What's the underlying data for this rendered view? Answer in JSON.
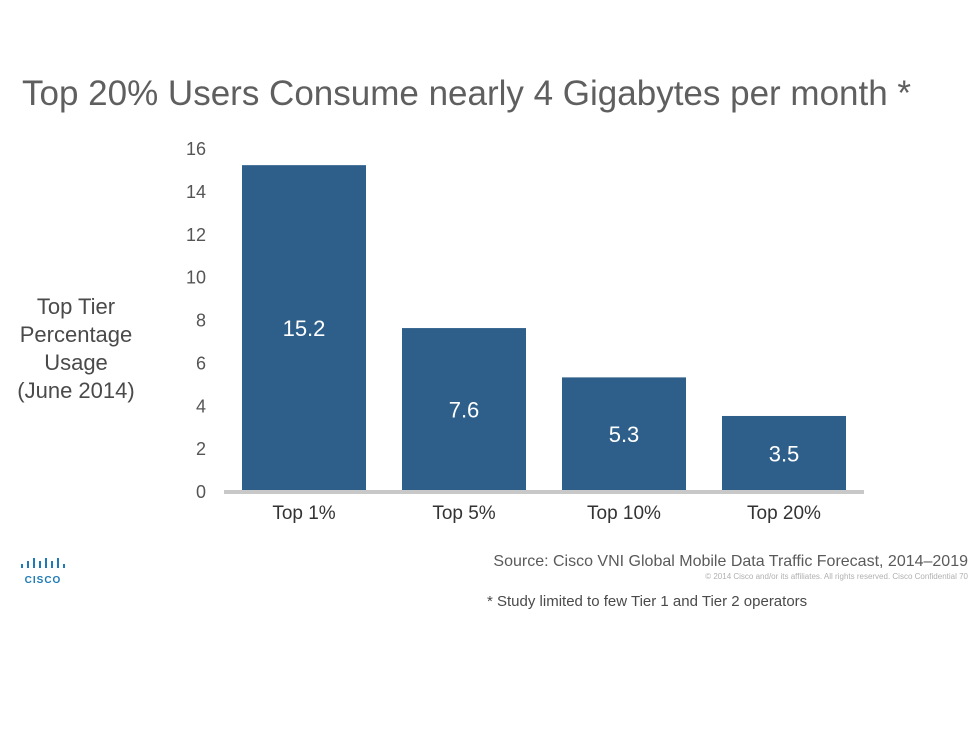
{
  "title": "Top 20% Users Consume nearly 4 Gigabytes per month *",
  "chart_data": {
    "type": "bar",
    "title": "Top 20% Users Consume nearly 4 Gigabytes per month *",
    "ylabel_lines": [
      "Top Tier",
      "Percentage",
      "Usage",
      "(June 2014)"
    ],
    "xlabel": "",
    "categories": [
      "Top 1%",
      "Top 5%",
      "Top 10%",
      "Top 20%"
    ],
    "values": [
      15.2,
      7.6,
      5.3,
      3.5
    ],
    "data_labels": [
      "15.2",
      "7.6",
      "5.3",
      "3.5"
    ],
    "yticks": [
      0,
      2,
      4,
      6,
      8,
      10,
      12,
      14,
      16
    ],
    "ylim": [
      0,
      16
    ],
    "grid": false,
    "bar_color": "#2e5f8a",
    "label_color": "#ffffff"
  },
  "source": "Source: Cisco VNI Global Mobile Data Traffic Forecast, 2014–2019",
  "copyright": "© 2014  Cisco and/or its affiliates. All rights reserved.   Cisco Confidential     70",
  "footnote": "* Study limited to few Tier 1 and Tier 2 operators",
  "logo": {
    "icon": "cisco-bars-logo",
    "text": "CISCO",
    "color": "#1f7bb6"
  }
}
